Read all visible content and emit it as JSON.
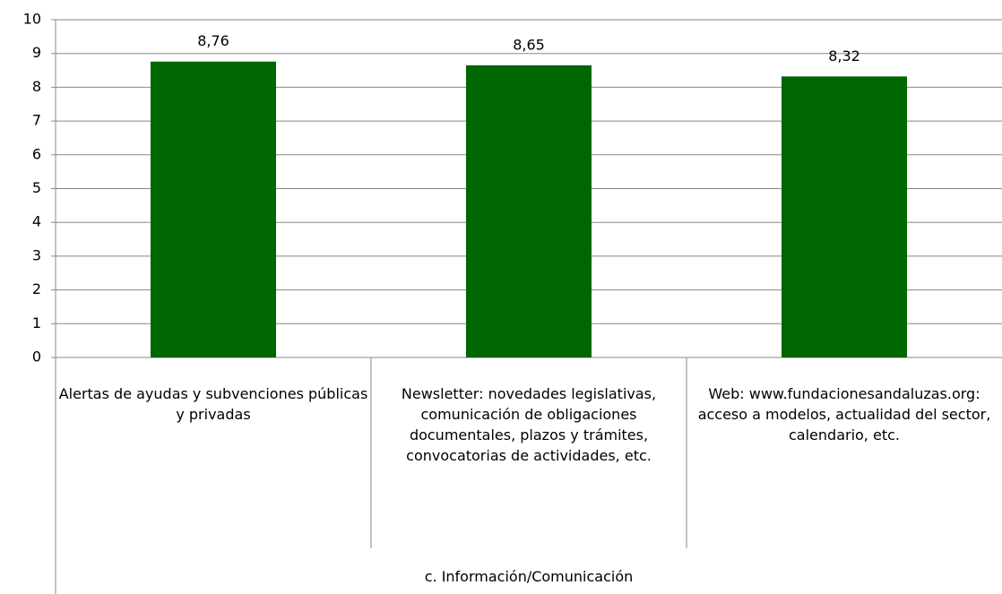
{
  "chart_data": {
    "type": "bar",
    "categories": [
      "Alertas de ayudas y subvenciones públicas y privadas",
      "Newsletter: novedades legislativas, comunicación de obligaciones documentales, plazos y trámites, convocatorias de actividades, etc.",
      "Web: www.fundacionesandaluzas.org: acceso a modelos, actualidad del sector, calendario, etc."
    ],
    "values": [
      8.76,
      8.65,
      8.32
    ],
    "value_labels": [
      "8,76",
      "8,65",
      "8,32"
    ],
    "group_label": "c. Información/Comunicación",
    "color": "#006600",
    "ylim": [
      0,
      10
    ],
    "yticks": [
      0,
      1,
      2,
      3,
      4,
      5,
      6,
      7,
      8,
      9,
      10
    ],
    "grid": true
  }
}
